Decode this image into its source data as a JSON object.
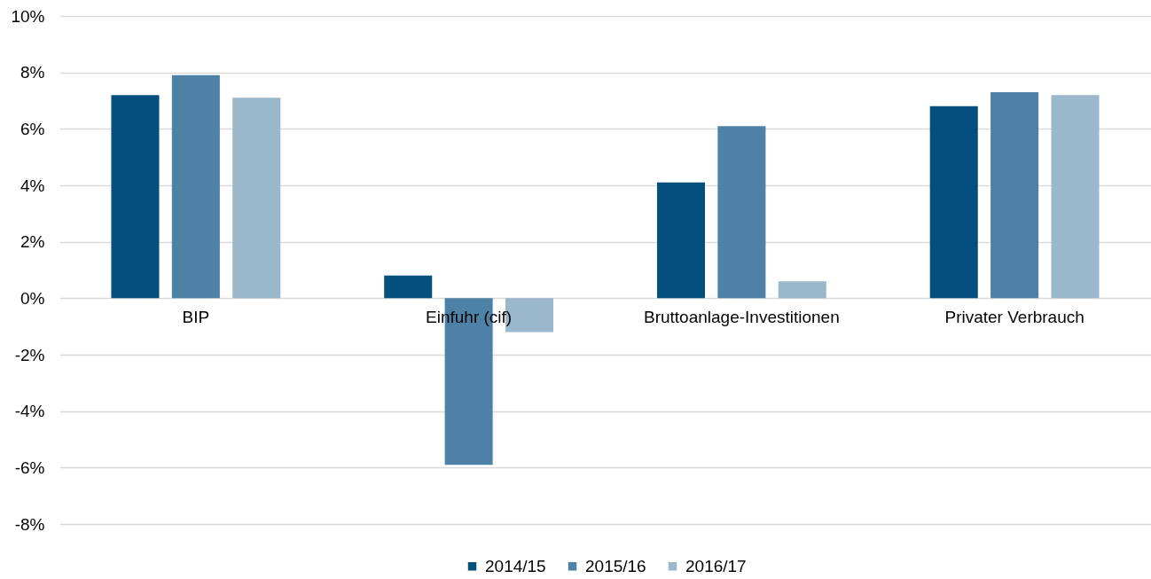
{
  "chart_data": {
    "type": "bar",
    "categories": [
      "BIP",
      "Einfuhr (cif)",
      "Bruttoanlage-Investitionen",
      "Privater Verbrauch"
    ],
    "series": [
      {
        "name": "2014/15",
        "color": "#03507f",
        "values": [
          7.2,
          0.8,
          4.1,
          6.8
        ]
      },
      {
        "name": "2015/16",
        "color": "#4d82a6",
        "values": [
          7.9,
          -5.9,
          6.1,
          7.3
        ]
      },
      {
        "name": "2016/17",
        "color": "#9ab7cc",
        "values": [
          7.1,
          -1.2,
          0.6,
          7.2
        ]
      }
    ],
    "ylim": [
      -8,
      10
    ],
    "yticks": [
      {
        "value": -8,
        "label": "-8%"
      },
      {
        "value": -6,
        "label": "-6%"
      },
      {
        "value": -4,
        "label": "-4%"
      },
      {
        "value": -2,
        "label": "-2%"
      },
      {
        "value": 0,
        "label": "0%"
      },
      {
        "value": 2,
        "label": "2%"
      },
      {
        "value": 4,
        "label": "4%"
      },
      {
        "value": 6,
        "label": "6%"
      },
      {
        "value": 8,
        "label": "8%"
      },
      {
        "value": 10,
        "label": "10%"
      }
    ],
    "grid": "y",
    "legend": "bottom"
  }
}
